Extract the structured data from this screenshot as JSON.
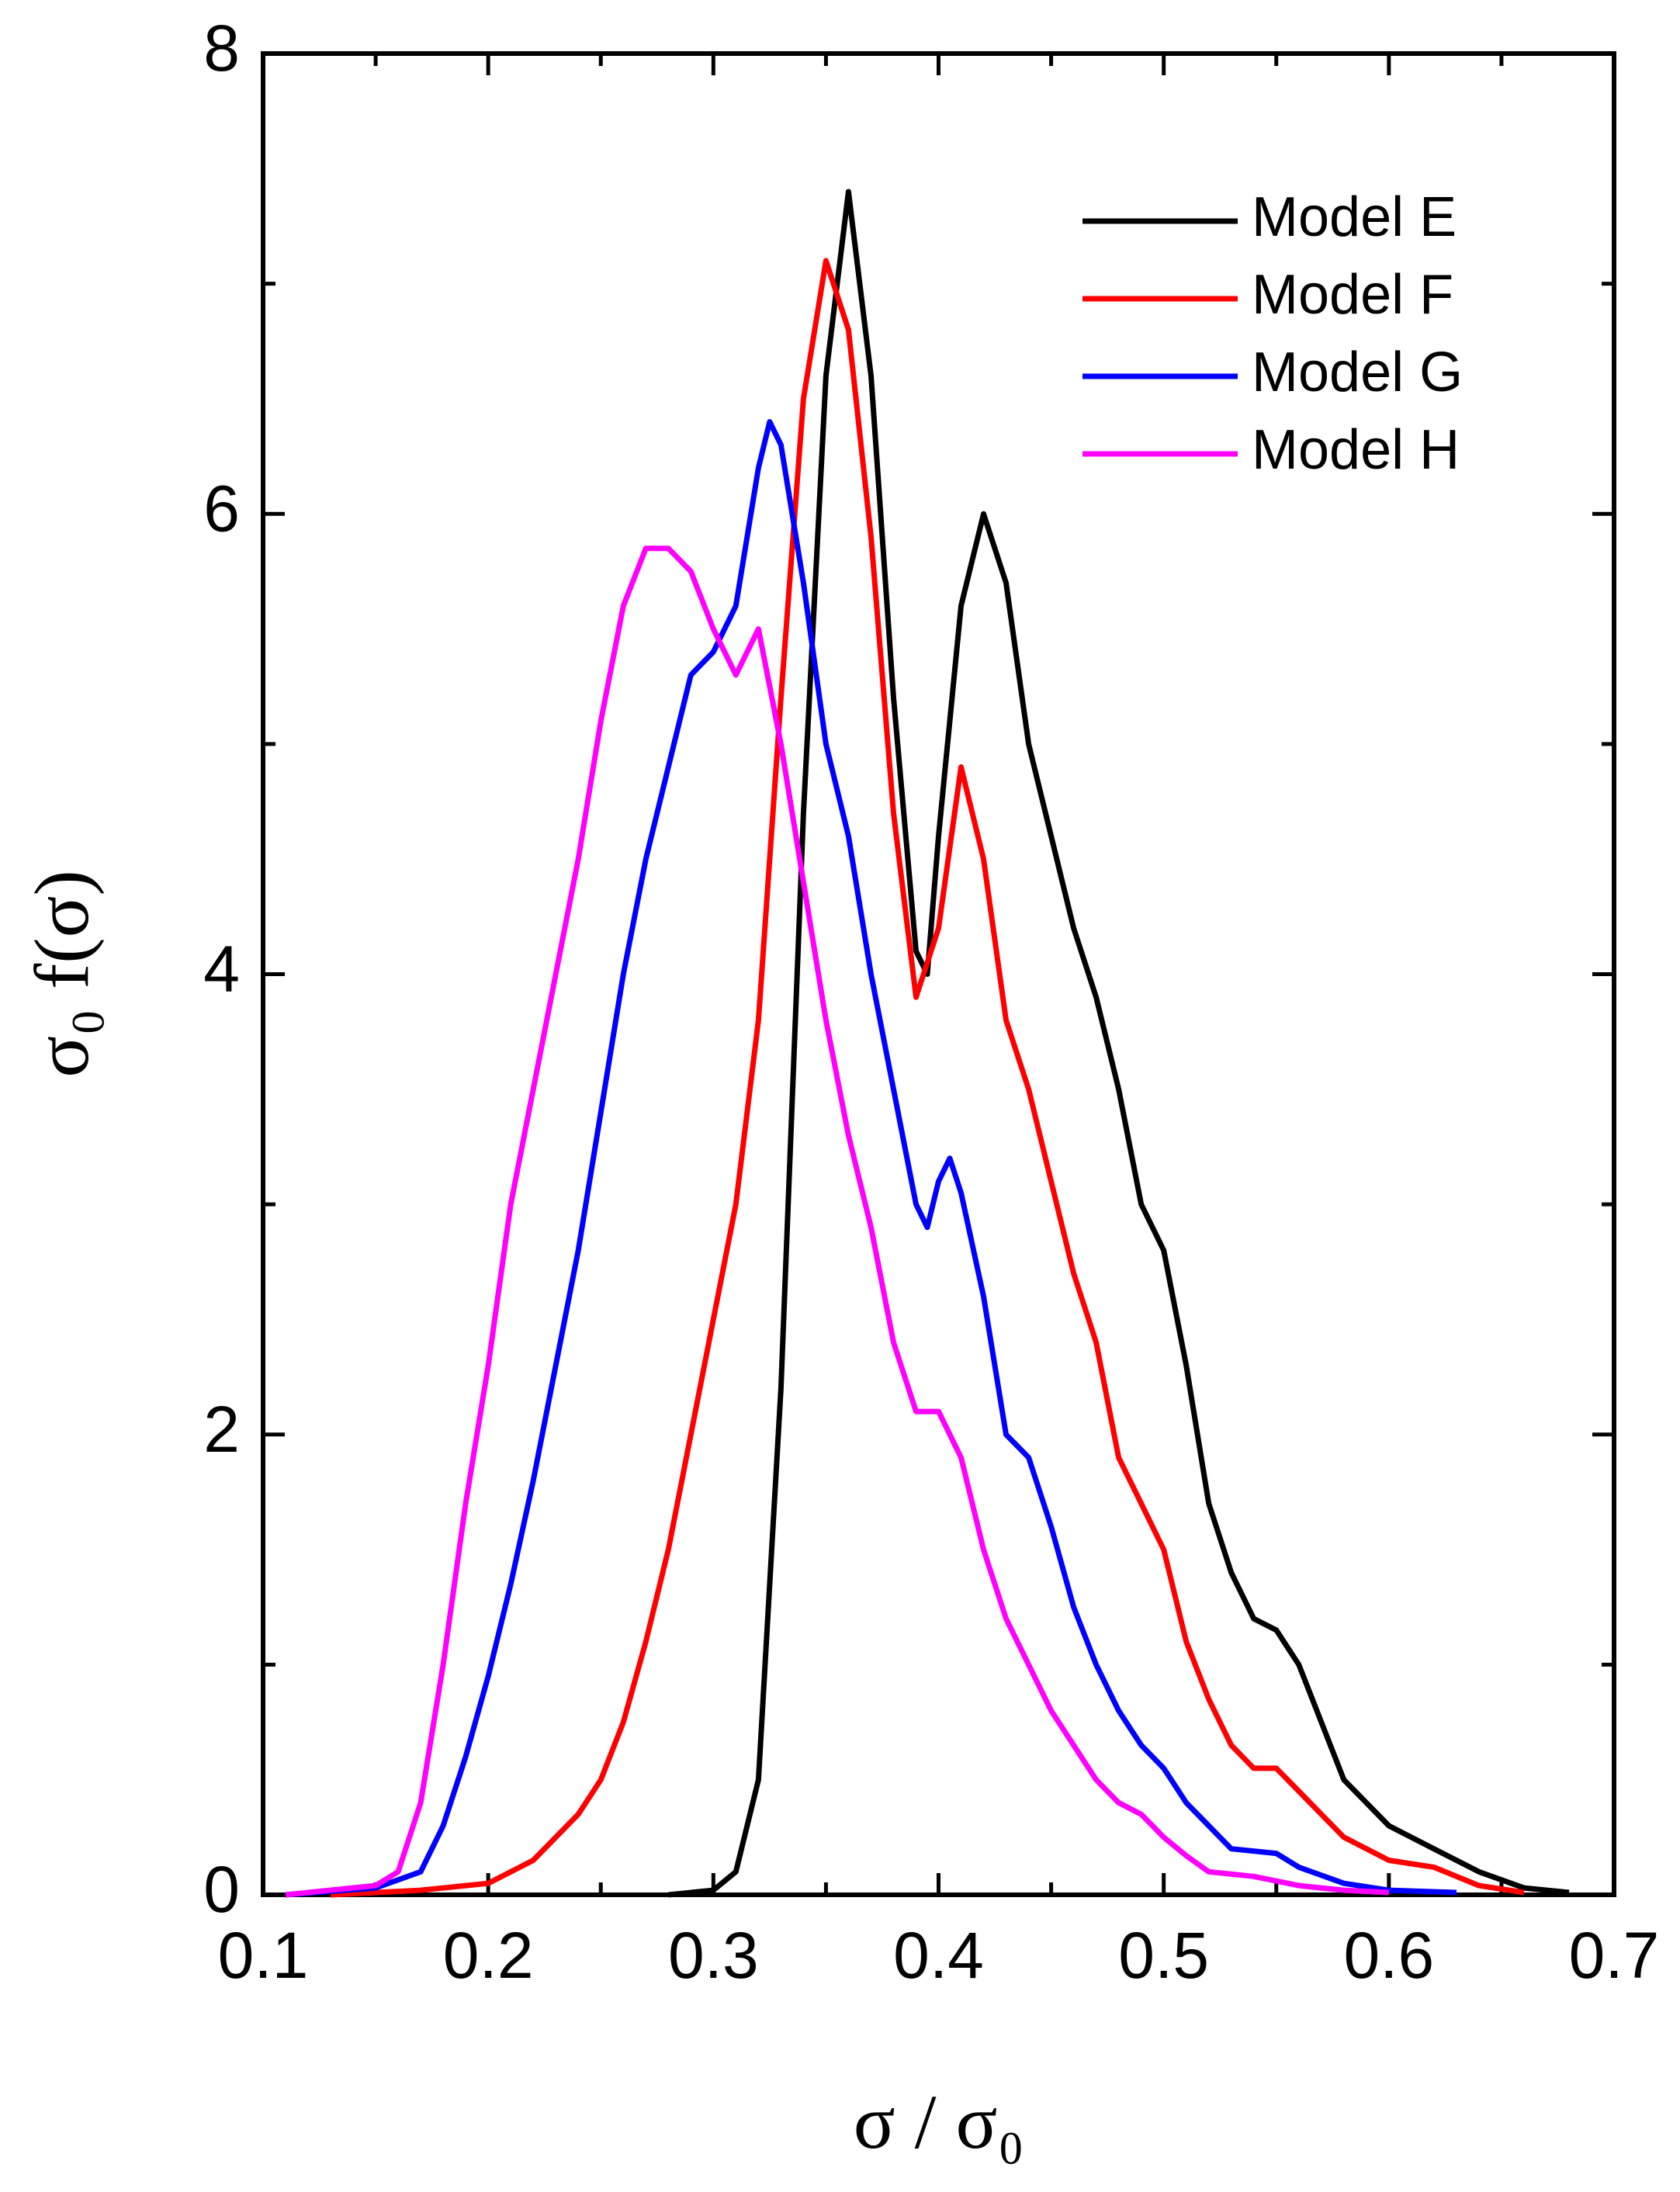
{
  "chart_data": {
    "type": "line",
    "x_label": "σ / σ₀",
    "y_label": "σ₀ f(σ)",
    "xlim": [
      0.1,
      0.7
    ],
    "ylim": [
      0,
      8
    ],
    "xticks": [
      0.1,
      0.2,
      0.3,
      0.4,
      0.5,
      0.6,
      0.7
    ],
    "yticks": [
      0,
      2,
      4,
      6,
      8
    ],
    "xminorticks": [
      0.15,
      0.25,
      0.35,
      0.45,
      0.55,
      0.65
    ],
    "yminorticks": [
      1,
      3,
      5,
      7
    ],
    "legend": "upper right",
    "series": [
      {
        "name": "Model E",
        "color": "#000000",
        "x": [
          0.28,
          0.3,
          0.31,
          0.32,
          0.33,
          0.34,
          0.35,
          0.36,
          0.37,
          0.38,
          0.39,
          0.395,
          0.4,
          0.41,
          0.42,
          0.43,
          0.44,
          0.45,
          0.46,
          0.47,
          0.48,
          0.49,
          0.5,
          0.51,
          0.52,
          0.53,
          0.54,
          0.55,
          0.56,
          0.57,
          0.58,
          0.59,
          0.6,
          0.62,
          0.64,
          0.66,
          0.68
        ],
        "values": [
          0,
          0.02,
          0.1,
          0.5,
          2.2,
          4.7,
          6.6,
          7.4,
          6.6,
          5.2,
          4.1,
          4.0,
          4.6,
          5.6,
          6.0,
          5.7,
          5.0,
          4.6,
          4.2,
          3.9,
          3.5,
          3.0,
          2.8,
          2.3,
          1.7,
          1.4,
          1.2,
          1.15,
          1.0,
          0.75,
          0.5,
          0.4,
          0.3,
          0.2,
          0.1,
          0.03,
          0.01
        ]
      },
      {
        "name": "Model F",
        "color": "#ff0000",
        "x": [
          0.13,
          0.17,
          0.2,
          0.22,
          0.24,
          0.25,
          0.26,
          0.27,
          0.28,
          0.29,
          0.3,
          0.31,
          0.32,
          0.33,
          0.34,
          0.35,
          0.36,
          0.37,
          0.38,
          0.39,
          0.4,
          0.41,
          0.42,
          0.43,
          0.44,
          0.45,
          0.46,
          0.47,
          0.48,
          0.49,
          0.5,
          0.51,
          0.52,
          0.53,
          0.54,
          0.55,
          0.56,
          0.57,
          0.58,
          0.6,
          0.62,
          0.64,
          0.66
        ],
        "values": [
          0,
          0.02,
          0.05,
          0.15,
          0.35,
          0.5,
          0.75,
          1.1,
          1.5,
          2.0,
          2.5,
          3.0,
          3.8,
          5.2,
          6.5,
          7.1,
          6.8,
          5.9,
          4.7,
          3.9,
          4.2,
          4.9,
          4.5,
          3.8,
          3.5,
          3.1,
          2.7,
          2.4,
          1.9,
          1.7,
          1.5,
          1.1,
          0.85,
          0.65,
          0.55,
          0.55,
          0.45,
          0.35,
          0.25,
          0.15,
          0.12,
          0.04,
          0.01
        ]
      },
      {
        "name": "Model G",
        "color": "#0000ff",
        "x": [
          0.11,
          0.15,
          0.17,
          0.18,
          0.19,
          0.2,
          0.21,
          0.22,
          0.23,
          0.24,
          0.25,
          0.26,
          0.27,
          0.28,
          0.29,
          0.3,
          0.31,
          0.32,
          0.325,
          0.33,
          0.34,
          0.35,
          0.36,
          0.37,
          0.38,
          0.39,
          0.395,
          0.4,
          0.405,
          0.41,
          0.42,
          0.43,
          0.44,
          0.45,
          0.46,
          0.47,
          0.48,
          0.49,
          0.5,
          0.51,
          0.52,
          0.53,
          0.55,
          0.56,
          0.58,
          0.6,
          0.63
        ],
        "values": [
          0,
          0.03,
          0.1,
          0.3,
          0.6,
          0.95,
          1.35,
          1.8,
          2.3,
          2.8,
          3.4,
          4.0,
          4.5,
          4.9,
          5.3,
          5.4,
          5.6,
          6.2,
          6.4,
          6.3,
          5.7,
          5.0,
          4.6,
          4.0,
          3.5,
          3.0,
          2.9,
          3.1,
          3.2,
          3.05,
          2.6,
          2.0,
          1.9,
          1.6,
          1.25,
          1.0,
          0.8,
          0.65,
          0.55,
          0.4,
          0.3,
          0.2,
          0.18,
          0.12,
          0.05,
          0.02,
          0.01
        ]
      },
      {
        "name": "Model H",
        "color": "#ff00ff",
        "x": [
          0.11,
          0.15,
          0.16,
          0.17,
          0.18,
          0.19,
          0.2,
          0.21,
          0.22,
          0.23,
          0.24,
          0.25,
          0.26,
          0.27,
          0.28,
          0.29,
          0.3,
          0.31,
          0.32,
          0.33,
          0.34,
          0.35,
          0.36,
          0.37,
          0.38,
          0.39,
          0.4,
          0.41,
          0.42,
          0.43,
          0.44,
          0.45,
          0.46,
          0.47,
          0.48,
          0.49,
          0.5,
          0.51,
          0.52,
          0.54,
          0.56,
          0.58,
          0.6
        ],
        "values": [
          0,
          0.04,
          0.1,
          0.4,
          1.0,
          1.7,
          2.3,
          3.0,
          3.5,
          4.0,
          4.5,
          5.1,
          5.6,
          5.85,
          5.85,
          5.75,
          5.5,
          5.3,
          5.5,
          5.0,
          4.4,
          3.8,
          3.3,
          2.9,
          2.4,
          2.1,
          2.1,
          1.9,
          1.5,
          1.2,
          1.0,
          0.8,
          0.65,
          0.5,
          0.4,
          0.35,
          0.25,
          0.17,
          0.1,
          0.08,
          0.04,
          0.02,
          0.01
        ]
      }
    ]
  }
}
